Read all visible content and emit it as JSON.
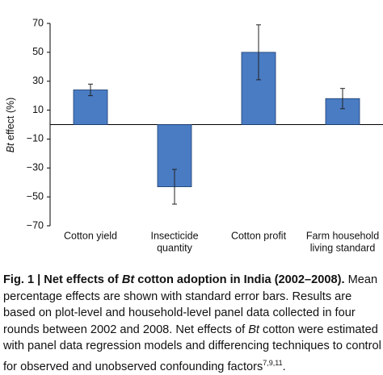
{
  "chart_data": {
    "type": "bar",
    "ylabel": [
      "Bt",
      " effect (%)"
    ],
    "categories": [
      [
        "Cotton yield"
      ],
      [
        "Insecticide",
        "quantity"
      ],
      [
        "Cotton profit"
      ],
      [
        "Farm household",
        "living standard"
      ]
    ],
    "values": [
      24,
      -43,
      50,
      18
    ],
    "errors": [
      4,
      12,
      19,
      7
    ],
    "color": "#4a7cc4",
    "ylim": [
      -70,
      70
    ],
    "yticks": [
      {
        "value": -70,
        "label": "−70"
      },
      {
        "value": -50,
        "label": "−50"
      },
      {
        "value": -30,
        "label": "−30"
      },
      {
        "value": -10,
        "label": "−10"
      },
      10,
      30,
      50,
      70
    ]
  },
  "caption": [
    "Fig. 1 | Net effects of ",
    "Bt",
    " cotton adoption in India (2002–2008).",
    " Mean percentage effects are shown with standard error bars. Results are based on plot-level and household-level panel data collected in four rounds between 2002 and 2008. Net effects of ",
    "Bt",
    " cotton were estimated with panel data regression models and differencing techniques to control for observed and unobserved confounding factors",
    "7,9,11",
    "."
  ]
}
